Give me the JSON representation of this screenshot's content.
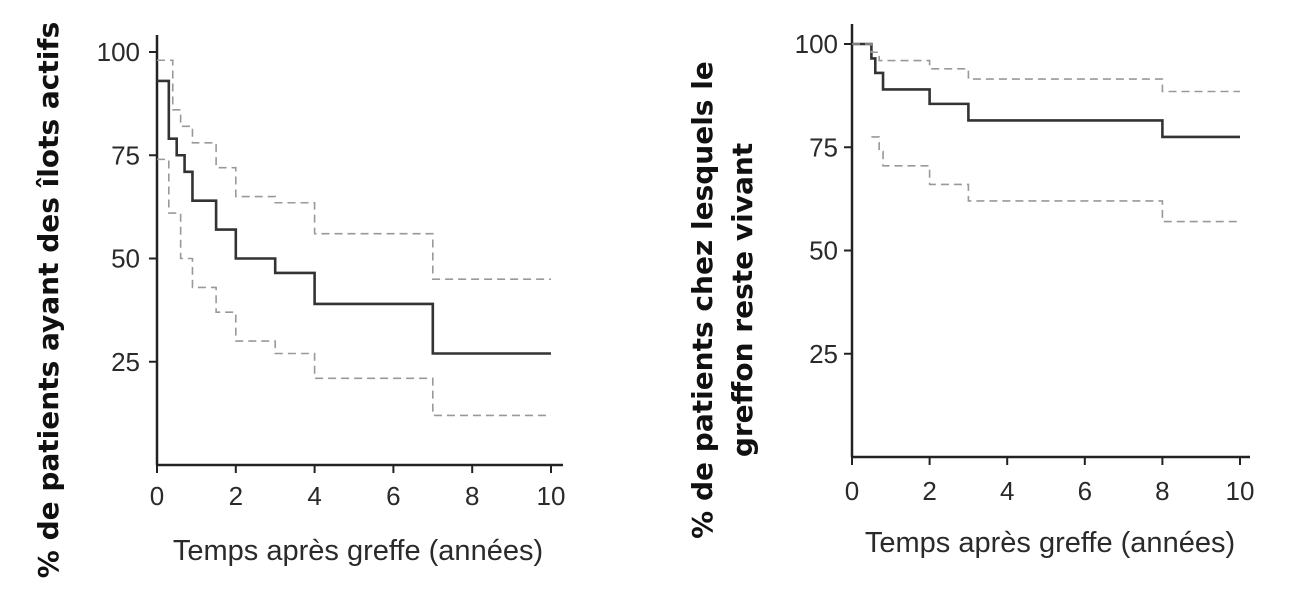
{
  "chart_data": [
    {
      "type": "line",
      "xlabel": "Temps après greffe (années)",
      "ylabel": "% de patients ayant des îlots actifs",
      "xlim": [
        0,
        10
      ],
      "ylim": [
        0,
        100
      ],
      "xticks": [
        "0",
        "2",
        "4",
        "6",
        "8",
        "10"
      ],
      "yticks": [
        "25",
        "50",
        "75",
        "100"
      ],
      "step": true,
      "grid": false,
      "series": [
        {
          "role": "estimate",
          "style": "solid",
          "color": "#333333",
          "x": [
            0,
            0.3,
            0.5,
            0.7,
            0.9,
            1.5,
            2.0,
            3.0,
            4.0,
            7.0,
            10.0
          ],
          "y": [
            93,
            79,
            75,
            71,
            64,
            57,
            50,
            46.5,
            39,
            27,
            27
          ]
        },
        {
          "role": "upper bound",
          "style": "dashed",
          "color": "#999999",
          "x": [
            0,
            0.4,
            0.6,
            0.9,
            1.5,
            2.0,
            3.0,
            4.0,
            7.0,
            10.0
          ],
          "y": [
            98,
            86,
            82,
            78,
            72,
            65,
            63.5,
            56,
            45,
            45
          ]
        },
        {
          "role": "lower bound",
          "style": "dashed",
          "color": "#999999",
          "x": [
            0,
            0.3,
            0.6,
            0.9,
            1.5,
            2.0,
            3.0,
            4.0,
            7.0,
            10.0
          ],
          "y": [
            74,
            61,
            50,
            43,
            37,
            30,
            27,
            21,
            12,
            12
          ]
        }
      ]
    },
    {
      "type": "line",
      "xlabel": "Temps après greffe (années)",
      "ylabel": "% de patients chez lesquels le greffon reste vivant",
      "ylabel_lines": [
        "% de patients chez lesquels le",
        "greffon reste vivant"
      ],
      "xlim": [
        0,
        10
      ],
      "ylim": [
        0,
        100
      ],
      "xticks": [
        "0",
        "2",
        "4",
        "6",
        "8",
        "10"
      ],
      "yticks": [
        "25",
        "50",
        "75",
        "100"
      ],
      "step": true,
      "grid": false,
      "series": [
        {
          "role": "estimate",
          "style": "solid",
          "color": "#333333",
          "x": [
            0,
            0.5,
            0.6,
            0.8,
            2.0,
            3.0,
            8.0,
            10.0
          ],
          "y": [
            100,
            96.5,
            93,
            89,
            85.5,
            81.5,
            77.5,
            77.5
          ]
        },
        {
          "role": "upper bound",
          "style": "dashed",
          "color": "#999999",
          "x": [
            0,
            0.5,
            0.7,
            2.0,
            3.0,
            8.0,
            10.0
          ],
          "y": [
            100,
            98,
            96,
            94,
            91.5,
            88.5,
            88.5
          ]
        },
        {
          "role": "lower bound",
          "style": "dashed",
          "color": "#999999",
          "x": [
            0.5,
            0.7,
            0.8,
            2.0,
            3.0,
            8.0,
            10.0
          ],
          "y": [
            77.5,
            74,
            70.5,
            66,
            62,
            57,
            57
          ]
        }
      ]
    }
  ]
}
